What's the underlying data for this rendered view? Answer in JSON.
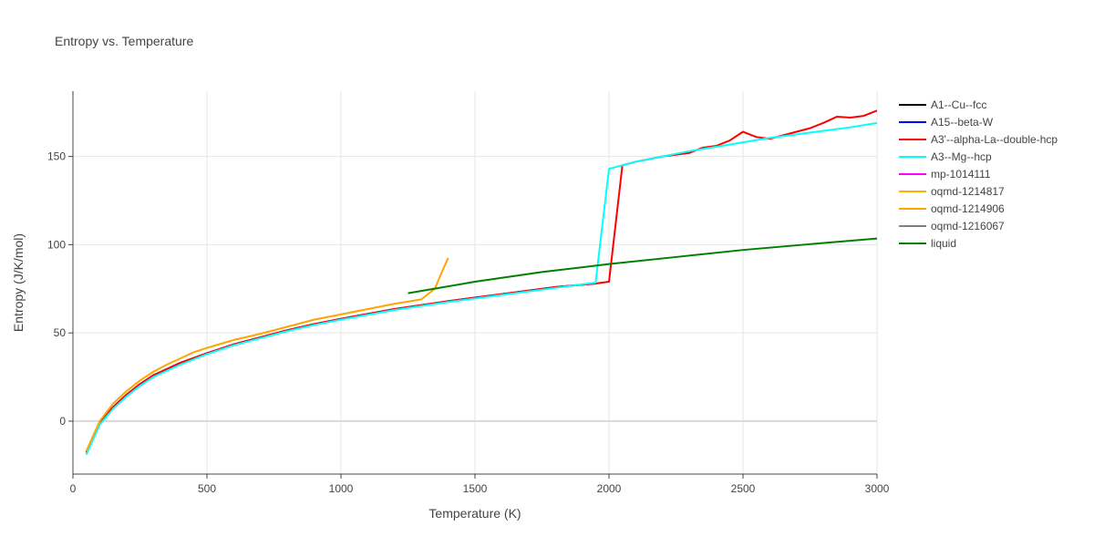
{
  "chart_data": {
    "type": "line",
    "title": "Entropy vs. Temperature",
    "xlabel": "Temperature (K)",
    "ylabel": "Entropy (J/K/mol)",
    "xlim": [
      0,
      3000
    ],
    "ylim": [
      -30,
      187
    ],
    "xticks": [
      0,
      500,
      1000,
      1500,
      2000,
      2500,
      3000
    ],
    "yticks": [
      0,
      50,
      100,
      150
    ],
    "grid": true,
    "legend_position": "right",
    "series": [
      {
        "name": "A1--Cu--fcc",
        "color": "#000000",
        "x": [],
        "y": []
      },
      {
        "name": "A15--beta-W",
        "color": "#0000ff",
        "x": [
          50,
          100,
          150,
          200,
          250,
          300,
          400,
          500,
          600,
          700,
          800,
          900,
          1000,
          1200,
          1400,
          1600,
          1800,
          1950
        ],
        "y": [
          -18,
          -1,
          8,
          15,
          21,
          26,
          33,
          38.5,
          43.5,
          47.5,
          51.5,
          55,
          58,
          63.5,
          68,
          72,
          76,
          78
        ]
      },
      {
        "name": "A3'--alpha-La--double-hcp",
        "color": "#ff0000",
        "x": [
          50,
          100,
          150,
          200,
          250,
          300,
          400,
          500,
          600,
          700,
          800,
          900,
          1000,
          1200,
          1400,
          1600,
          1800,
          1950,
          2000,
          2050,
          2100,
          2200,
          2300,
          2350,
          2400,
          2450,
          2500,
          2550,
          2600,
          2650,
          2700,
          2750,
          2800,
          2850,
          2900,
          2950,
          3000
        ],
        "y": [
          -18,
          -1,
          8,
          15,
          21,
          26,
          33,
          38.5,
          43.5,
          47.5,
          51.5,
          55,
          58,
          63.5,
          68,
          72,
          76,
          78,
          79,
          145,
          147,
          150,
          152,
          155,
          156,
          159,
          164,
          161,
          160,
          162,
          164,
          166,
          169,
          172.5,
          172,
          173,
          176
        ]
      },
      {
        "name": "A3--Mg--hcp",
        "color": "#00ffff",
        "x": [
          50,
          100,
          150,
          200,
          250,
          300,
          400,
          500,
          600,
          700,
          800,
          900,
          1000,
          1200,
          1400,
          1600,
          1800,
          1950,
          2000,
          2100,
          2200,
          2300,
          2400,
          2500,
          2600,
          2700,
          2800,
          2900,
          3000
        ],
        "y": [
          -19,
          -2,
          7,
          14,
          20,
          25,
          32,
          38,
          43,
          47,
          51,
          54.5,
          57.5,
          63,
          67.5,
          71.5,
          75.5,
          78.5,
          143,
          147,
          150,
          153,
          155.5,
          158,
          160.5,
          162.5,
          164.5,
          166.5,
          169
        ]
      },
      {
        "name": "mp-1014111",
        "color": "#ff00ff",
        "x": [],
        "y": []
      },
      {
        "name": "oqmd-1214817",
        "color": "#ffb000",
        "x": [],
        "y": []
      },
      {
        "name": "oqmd-1214906",
        "color": "#ffa500",
        "x": [
          50,
          100,
          150,
          200,
          250,
          300,
          350,
          400,
          450,
          500,
          600,
          700,
          800,
          900,
          1000,
          1100,
          1200,
          1300,
          1350,
          1375,
          1400
        ],
        "y": [
          -17,
          0,
          10,
          17,
          23,
          28,
          32,
          35.5,
          39,
          41.5,
          46,
          49.5,
          53.5,
          57.5,
          60.5,
          63.5,
          66.5,
          69,
          75,
          84,
          92.5
        ]
      },
      {
        "name": "oqmd-1216067",
        "color": "#808080",
        "x": [],
        "y": []
      },
      {
        "name": "liquid",
        "color": "#008000",
        "x": [
          1250,
          1500,
          1750,
          2000,
          2250,
          2500,
          2750,
          3000
        ],
        "y": [
          72.5,
          79,
          84.5,
          89,
          93,
          97,
          100.3,
          103.5
        ]
      }
    ]
  }
}
